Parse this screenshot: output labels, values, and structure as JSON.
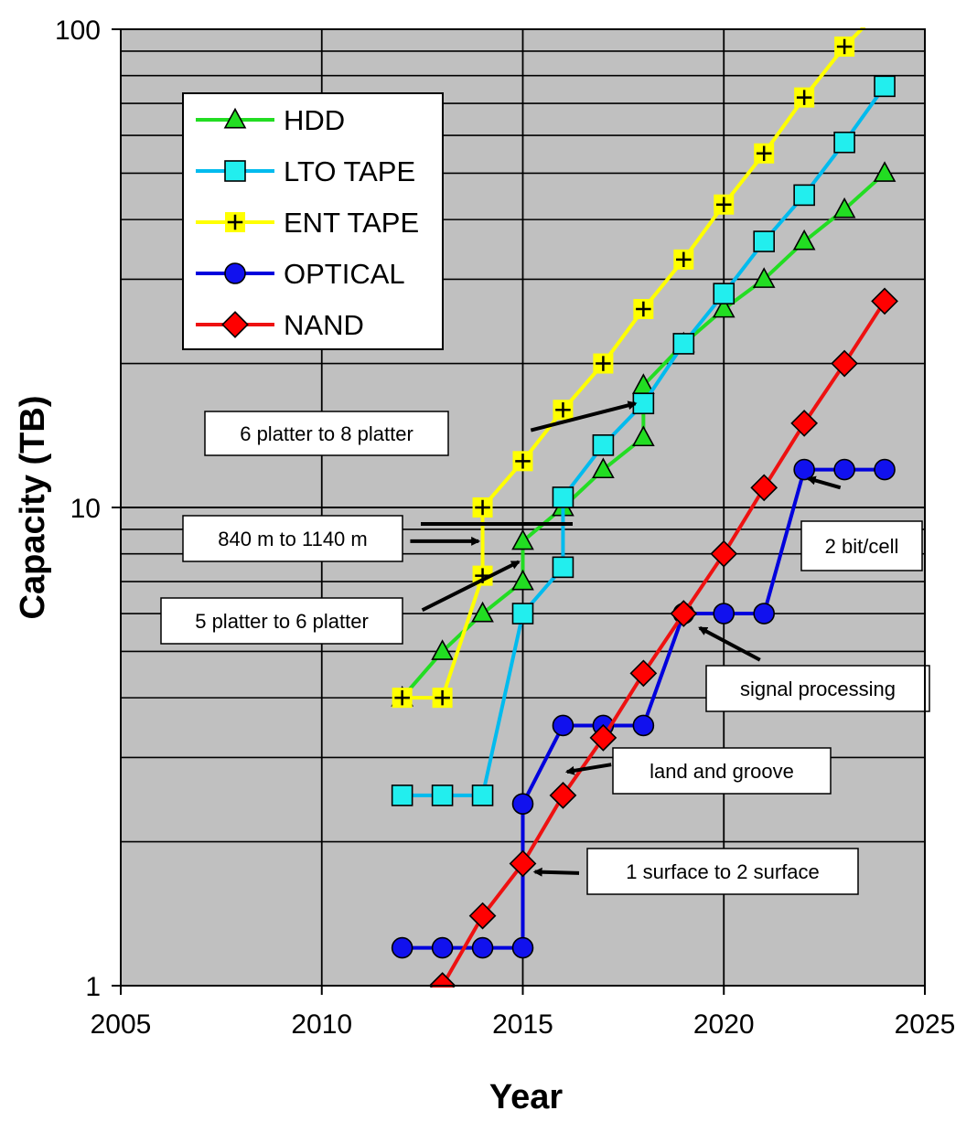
{
  "chart_data": {
    "type": "line",
    "title": "",
    "xlabel": "Year",
    "ylabel": "Capacity (TB)",
    "xlim": [
      2005,
      2025
    ],
    "ylim": [
      1,
      100
    ],
    "yscale": "log",
    "grid": true,
    "xticks": [
      2005,
      2010,
      2015,
      2020,
      2025
    ],
    "xtick_labels": [
      "2005",
      "2010",
      "2015",
      "2020",
      "2025"
    ],
    "yticks": [
      1,
      10,
      100
    ],
    "ytick_labels": [
      "1",
      "10",
      "100"
    ],
    "legend_position": "top-left",
    "plot_background": "#c0c0c0",
    "series": [
      {
        "name": "HDD",
        "color": "#22dd22",
        "marker": "triangle",
        "marker_fill": "#22dd22",
        "points": [
          [
            2012,
            4
          ],
          [
            2013,
            5
          ],
          [
            2014,
            6
          ],
          [
            2015,
            7
          ],
          [
            2015,
            8.5
          ],
          [
            2016,
            10
          ],
          [
            2017,
            12
          ],
          [
            2018,
            14
          ],
          [
            2018,
            18
          ],
          [
            2019,
            22
          ],
          [
            2020,
            26
          ],
          [
            2021,
            30
          ],
          [
            2022,
            36
          ],
          [
            2023,
            42
          ],
          [
            2024,
            50
          ]
        ]
      },
      {
        "name": "LTO TAPE",
        "color": "#00bbee",
        "marker": "square",
        "marker_fill": "#22eeee",
        "points": [
          [
            2012,
            2.5
          ],
          [
            2013,
            2.5
          ],
          [
            2014,
            2.5
          ],
          [
            2015,
            6
          ],
          [
            2016,
            7.5
          ],
          [
            2016,
            10.5
          ],
          [
            2017,
            13.5
          ],
          [
            2018,
            16.5
          ],
          [
            2019,
            22
          ],
          [
            2020,
            28
          ],
          [
            2021,
            36
          ],
          [
            2022,
            45
          ],
          [
            2023,
            58
          ],
          [
            2024,
            76
          ]
        ]
      },
      {
        "name": "ENT TAPE",
        "color": "#ffff00",
        "marker": "plus-square",
        "marker_fill": "#ffff00",
        "points": [
          [
            2012,
            4
          ],
          [
            2013,
            4
          ],
          [
            2014,
            7.2
          ],
          [
            2014,
            10
          ],
          [
            2015,
            12.5
          ],
          [
            2016,
            16
          ],
          [
            2017,
            20
          ],
          [
            2018,
            26
          ],
          [
            2019,
            33
          ],
          [
            2020,
            43
          ],
          [
            2021,
            55
          ],
          [
            2022,
            72
          ],
          [
            2023,
            92
          ],
          [
            2024,
            112
          ]
        ]
      },
      {
        "name": "OPTICAL",
        "color": "#0000dd",
        "marker": "circle",
        "marker_fill": "#1111ee",
        "points": [
          [
            2012,
            1.2
          ],
          [
            2013,
            1.2
          ],
          [
            2014,
            1.2
          ],
          [
            2015,
            1.2
          ],
          [
            2015,
            2.4
          ],
          [
            2016,
            3.5
          ],
          [
            2017,
            3.5
          ],
          [
            2018,
            3.5
          ],
          [
            2019,
            6
          ],
          [
            2020,
            6
          ],
          [
            2021,
            6
          ],
          [
            2022,
            12
          ],
          [
            2023,
            12
          ],
          [
            2024,
            12
          ]
        ]
      },
      {
        "name": "NAND",
        "color": "#ee1111",
        "marker": "diamond",
        "marker_fill": "#ff0000",
        "points": [
          [
            2013,
            1
          ],
          [
            2014,
            1.4
          ],
          [
            2015,
            1.8
          ],
          [
            2016,
            2.5
          ],
          [
            2017,
            3.3
          ],
          [
            2018,
            4.5
          ],
          [
            2019,
            6
          ],
          [
            2020,
            8
          ],
          [
            2021,
            11
          ],
          [
            2022,
            15
          ],
          [
            2023,
            20
          ],
          [
            2024,
            27
          ]
        ]
      }
    ],
    "annotations": [
      {
        "text": "6 platter to 8 platter",
        "arrow_tail": [
          2015.2,
          14.5
        ],
        "arrow_head": [
          2017.8,
          16.5
        ]
      },
      {
        "text": "840 m to 1140 m",
        "arrow_tail": [
          2012.2,
          8.5
        ],
        "arrow_head": [
          2013.9,
          8.5
        ]
      },
      {
        "text": "5 platter to 6 platter",
        "arrow_tail": [
          2012.5,
          6.1
        ],
        "arrow_head": [
          2014.9,
          7.7
        ]
      },
      {
        "text": "2 bit/cell",
        "arrow_tail": [
          2022.9,
          11
        ],
        "arrow_head": [
          2022.1,
          11.5
        ]
      },
      {
        "text": "signal processing",
        "arrow_tail": [
          2020.9,
          4.8
        ],
        "arrow_head": [
          2019.4,
          5.6
        ]
      },
      {
        "text": "land and groove",
        "arrow_tail": [
          2017.2,
          2.9
        ],
        "arrow_head": [
          2016.1,
          2.8
        ]
      },
      {
        "text": "1 surface to 2 surface",
        "arrow_tail": [
          2016.4,
          1.72
        ],
        "arrow_head": [
          2015.3,
          1.73
        ]
      }
    ]
  }
}
